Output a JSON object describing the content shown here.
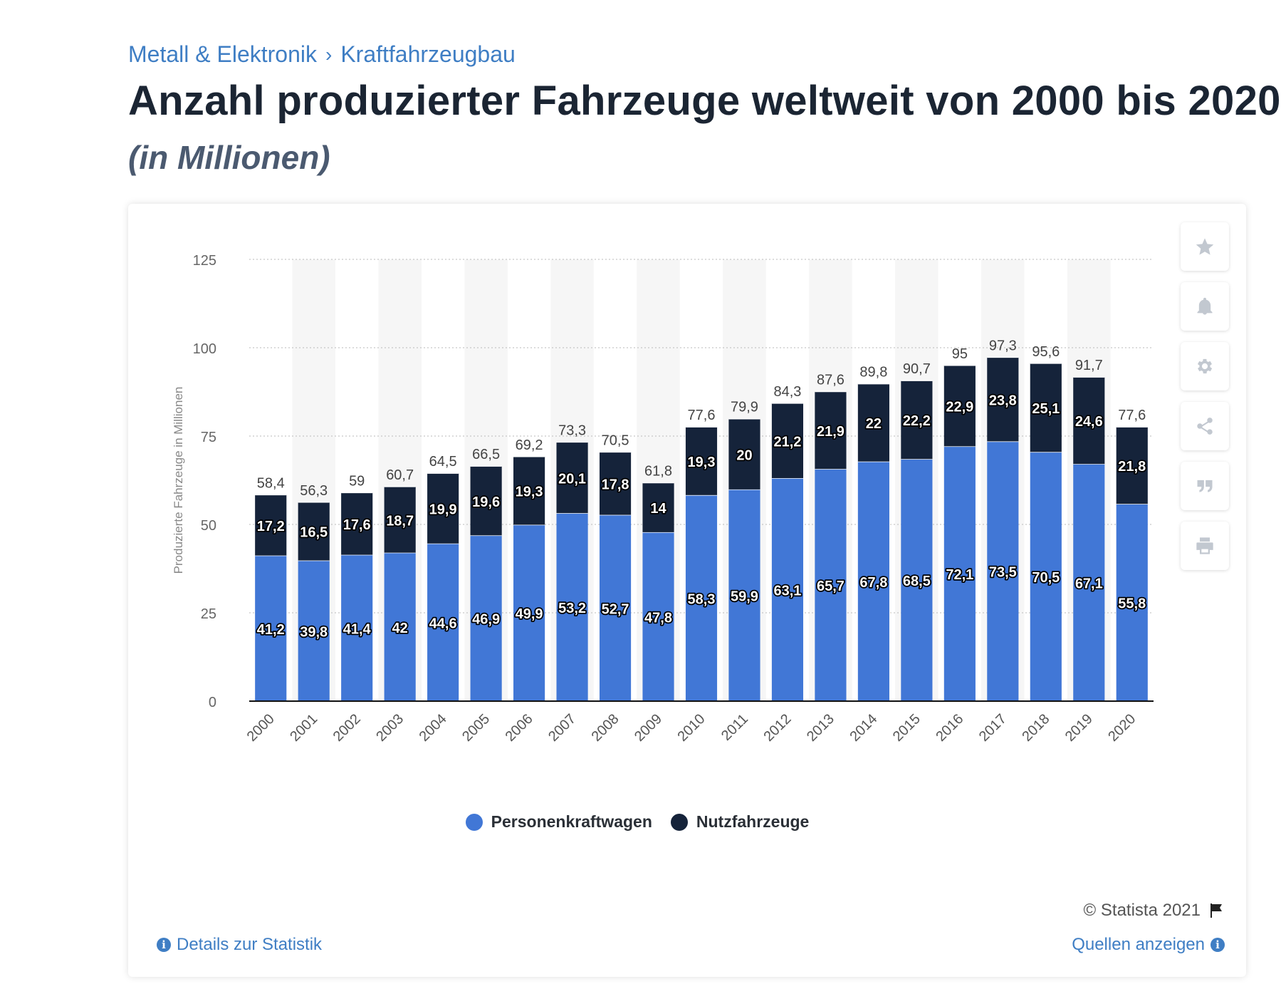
{
  "breadcrumb": {
    "items": [
      "Metall & Elektronik",
      "Kraftfahrzeugbau"
    ],
    "separator": "›"
  },
  "title": "Anzahl produzierter Fahrzeuge weltweit von 2000 bis 2020",
  "subtitle": "(in Millionen)",
  "colors": {
    "pkw": "#4177d6",
    "nfz": "#15233a",
    "accent": "#3f7ec4"
  },
  "chart_data": {
    "type": "bar",
    "stacked": true,
    "categories": [
      "2000",
      "2001",
      "2002",
      "2003",
      "2004",
      "2005",
      "2006",
      "2007",
      "2008",
      "2009",
      "2010",
      "2011",
      "2012",
      "2013",
      "2014",
      "2015",
      "2016",
      "2017",
      "2018",
      "2019",
      "2020"
    ],
    "series": [
      {
        "name": "Personenkraftwagen",
        "values": [
          41.2,
          39.8,
          41.4,
          42,
          44.6,
          46.9,
          49.9,
          53.2,
          52.7,
          47.8,
          58.3,
          59.9,
          63.1,
          65.7,
          67.8,
          68.5,
          72.1,
          73.5,
          70.5,
          67.1,
          55.8
        ]
      },
      {
        "name": "Nutzfahrzeuge",
        "values": [
          17.2,
          16.5,
          17.6,
          18.7,
          19.9,
          19.6,
          19.3,
          20.1,
          17.8,
          14,
          19.3,
          20,
          21.2,
          21.9,
          22,
          22.2,
          22.9,
          23.8,
          25.1,
          24.6,
          21.8
        ]
      }
    ],
    "totals": [
      58.4,
      56.3,
      59,
      60.7,
      64.5,
      66.5,
      69.2,
      73.3,
      70.5,
      61.8,
      77.6,
      79.9,
      84.3,
      87.6,
      89.8,
      90.7,
      95,
      97.3,
      95.6,
      91.7,
      77.6
    ],
    "ylabel": "Produzierte Fahrzeuge in Millionen",
    "xlabel": "",
    "ylim": [
      0,
      125
    ],
    "yticks": [
      0,
      25,
      50,
      75,
      100,
      125
    ],
    "grid": true,
    "legend_position": "bottom"
  },
  "legend": {
    "pkw_label": "Personenkraftwagen",
    "nfz_label": "Nutzfahrzeuge"
  },
  "toolbar": {
    "icons": [
      "star-icon",
      "bell-icon",
      "gear-icon",
      "share-icon",
      "quote-icon",
      "print-icon"
    ]
  },
  "footer": {
    "copyright": "© Statista 2021",
    "details_link": "Details zur Statistik",
    "sources_link": "Quellen anzeigen"
  }
}
